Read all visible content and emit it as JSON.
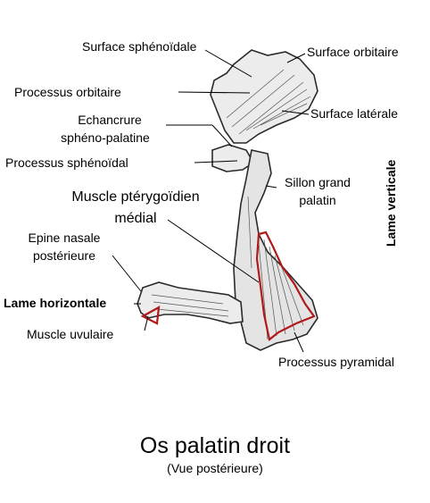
{
  "labels": {
    "surface_sphenoidale": "Surface sphénoïdale",
    "surface_orbitaire": "Surface orbitaire",
    "processus_orbitaire": "Processus orbitaire",
    "surface_laterale": "Surface latérale",
    "echancrure_1": "Echancrure",
    "echancrure_2": "sphéno-palatine",
    "processus_sphenoidal": "Processus sphénoïdal",
    "sillon_1": "Sillon grand",
    "sillon_2": "palatin",
    "muscle_pterygoidien_1": "Muscle ptérygoïdien",
    "muscle_pterygoidien_2": "médial",
    "epine_1": "Epine nasale",
    "epine_2": "postérieure",
    "lame_horizontale": "Lame horizontale",
    "muscle_uvulaire": "Muscle uvulaire",
    "processus_pyramidal": "Processus pyramidal",
    "lame_verticale": "Lame verticale"
  },
  "title": "Os palatin droit",
  "subtitle": "(Vue postérieure)",
  "colors": {
    "bone_fill": "#ececec",
    "bone_outline": "#2a2a2a",
    "muscle_outline": "#b01a1a",
    "leader": "#000000"
  }
}
